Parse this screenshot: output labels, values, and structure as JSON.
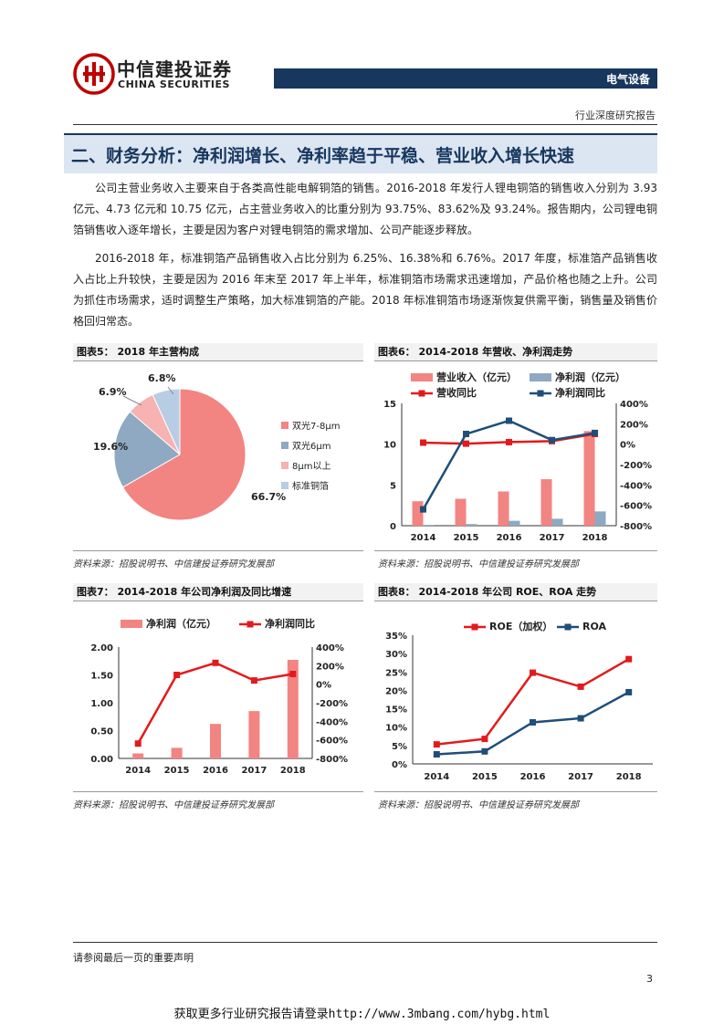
{
  "header": {
    "logo_cn": "中信建投证券",
    "logo_en": "CHINA SECURITIES",
    "sector": "电气设备",
    "report_type": "行业深度研究报告"
  },
  "section": {
    "title": "二、财务分析：净利润增长、净利率趋于平稳、营业收入增长快速"
  },
  "paragraphs": [
    "公司主营业务收入主要来自于各类高性能电解铜箔的销售。2016-2018 年发行人锂电铜箔的销售收入分别为 3.93 亿元、4.73 亿元和 10.75 亿元，占主营业务收入的比重分别为 93.75%、83.62%及 93.24%。报告期内，公司锂电铜箔销售收入逐年增长，主要是因为客户对锂电铜箔的需求增加、公司产能逐步释放。",
    "2016-2018 年，标准铜箔产品销售收入占比分别为 6.25%、16.38%和 6.76%。2017 年度，标准箔产品销售收入占比上升较快，主要是因为 2016 年末至 2017 年上半年，标准铜箔市场需求迅速增加，产品价格也随之上升。公司为抓住市场需求，适时调整生产策略，加大标准铜箔的产能。2018 年标准铜箔市场逐渐恢复供需平衡，销售量及销售价格回归常态。"
  ],
  "figures": {
    "fig5": {
      "label": "图表5：",
      "title": "2018 年主营构成",
      "source": "资料来源：招股说明书、中信建投证券研究发展部"
    },
    "fig6": {
      "label": "图表6：",
      "title": "2014-2018 年营收、净利润走势",
      "source": "资料来源：招股说明书、中信建投证券研究发展部"
    },
    "fig7": {
      "label": "图表7：",
      "title": "2014-2018 年公司净利润及同比增速",
      "source": "资料来源：招股说明书、中信建投证券研究发展部"
    },
    "fig8": {
      "label": "图表8：",
      "title": "2014-2018 年公司 ROE、ROA 走势",
      "source": "资料来源：招股说明书、中信建投证券研究发展部"
    }
  },
  "chart_data": [
    {
      "id": "fig5",
      "type": "pie",
      "categories": [
        "双光7-8μm",
        "双光6μm",
        "8μm以上",
        "标准铜箔"
      ],
      "values": [
        66.7,
        19.6,
        6.9,
        6.8
      ],
      "value_labels": [
        "66.7%",
        "19.6%",
        "6.9%",
        "6.8%"
      ],
      "colors": [
        "#f28482",
        "#8ea9c1",
        "#f7b2b2",
        "#b8cce4"
      ],
      "legend": "right"
    },
    {
      "id": "fig6",
      "type": "bar",
      "categories": [
        "2014",
        "2015",
        "2016",
        "2017",
        "2018"
      ],
      "series": [
        {
          "name": "营业收入（亿元）",
          "kind": "bar",
          "axis": "left",
          "color": "#f28482",
          "values": [
            3.0,
            3.3,
            4.2,
            5.7,
            11.6
          ]
        },
        {
          "name": "净利润（亿元）",
          "kind": "bar",
          "axis": "left",
          "color": "#8ea9c1",
          "values": [
            0.1,
            0.2,
            0.6,
            0.85,
            1.75
          ]
        },
        {
          "name": "营收同比",
          "kind": "line",
          "axis": "right",
          "color": "#e31a1c",
          "values": [
            15,
            5,
            20,
            30,
            100
          ]
        },
        {
          "name": "净利润同比",
          "kind": "line",
          "axis": "right",
          "color": "#1f4e79",
          "values": [
            -640,
            100,
            230,
            40,
            110
          ]
        }
      ],
      "ylim": [
        0,
        15
      ],
      "yticks": [
        "0",
        "5",
        "10",
        "15"
      ],
      "y2lim": [
        -800,
        400
      ],
      "y2ticks": [
        "-800%",
        "-600%",
        "-400%",
        "-200%",
        "0%",
        "200%",
        "400%"
      ],
      "legend": "top"
    },
    {
      "id": "fig7",
      "type": "bar",
      "categories": [
        "2014",
        "2015",
        "2016",
        "2017",
        "2018"
      ],
      "series": [
        {
          "name": "净利润（亿元）",
          "kind": "bar",
          "axis": "left",
          "color": "#f28482",
          "values": [
            0.09,
            0.19,
            0.62,
            0.85,
            1.77
          ]
        },
        {
          "name": "净利润同比",
          "kind": "line",
          "axis": "right",
          "color": "#e31a1c",
          "values": [
            -640,
            100,
            230,
            40,
            110
          ]
        }
      ],
      "ylim": [
        0,
        2
      ],
      "yticks": [
        "0.00",
        "0.50",
        "1.00",
        "1.50",
        "2.00"
      ],
      "y2lim": [
        -800,
        400
      ],
      "y2ticks": [
        "-800%",
        "-600%",
        "-400%",
        "-200%",
        "0%",
        "200%",
        "400%"
      ],
      "legend": "top"
    },
    {
      "id": "fig8",
      "type": "line",
      "categories": [
        "2014",
        "2015",
        "2016",
        "2017",
        "2018"
      ],
      "series": [
        {
          "name": "ROE（加权）",
          "color": "#e31a1c",
          "values": [
            5.3,
            6.8,
            24.8,
            21.0,
            28.5
          ]
        },
        {
          "name": "ROA",
          "color": "#1f4e79",
          "values": [
            2.6,
            3.4,
            11.3,
            12.4,
            19.5
          ]
        }
      ],
      "ylim": [
        0,
        35
      ],
      "yticks": [
        "0%",
        "5%",
        "10%",
        "15%",
        "20%",
        "25%",
        "30%",
        "35%"
      ],
      "legend": "top"
    }
  ],
  "footer": {
    "note": "请参阅最后一页的重要声明",
    "page": "3",
    "promo": "获取更多行业研究报告请登录http://www.3mbang.com/hybg.html"
  }
}
